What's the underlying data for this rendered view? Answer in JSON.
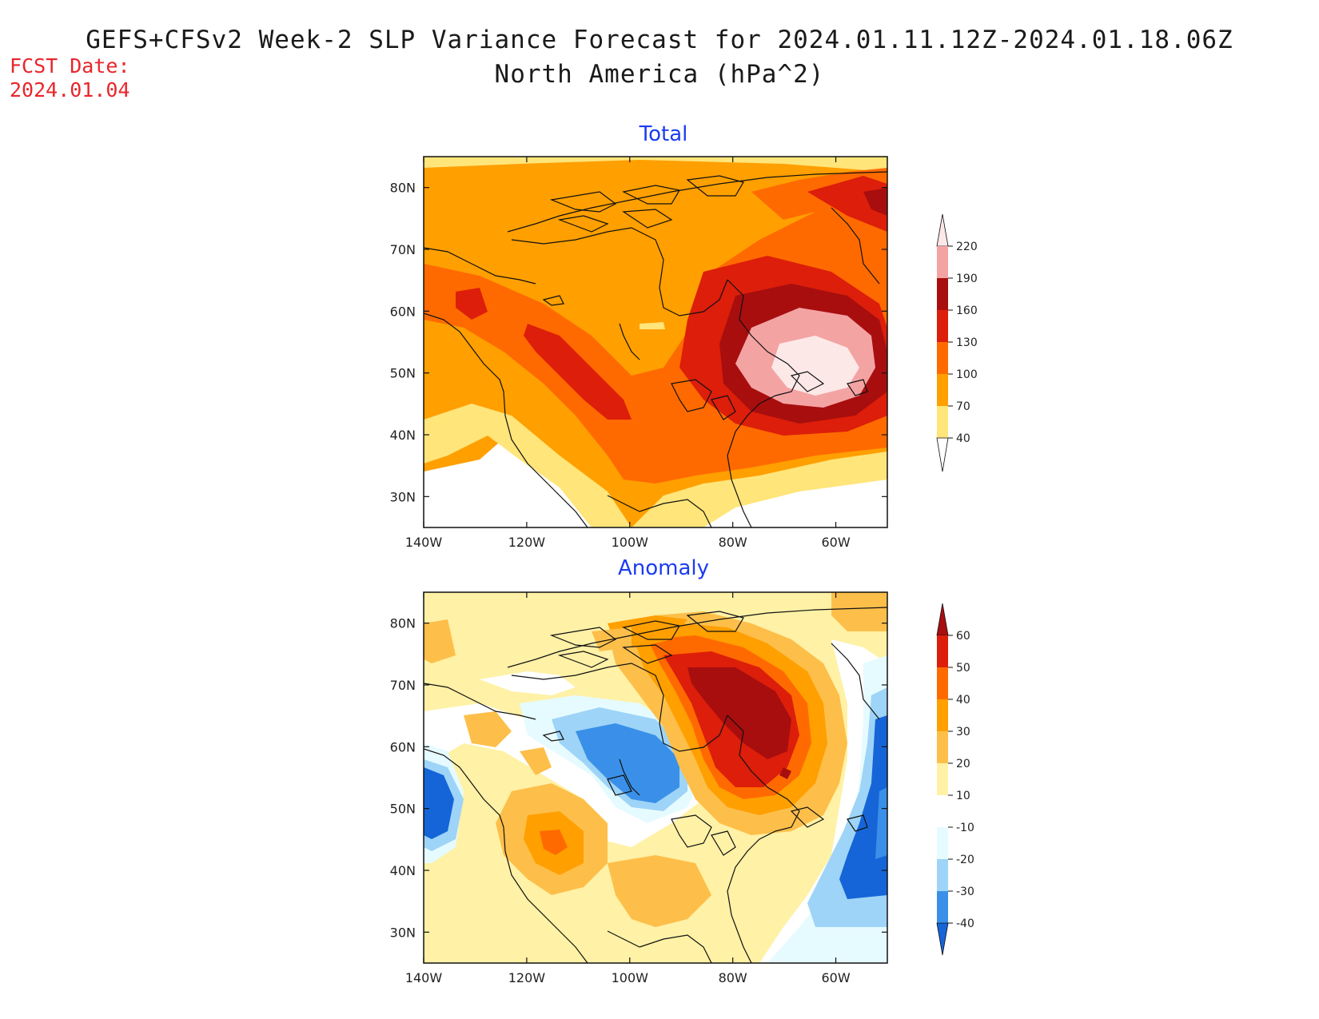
{
  "header": {
    "title_line1": "GEFS+CFSv2 Week-2 SLP Variance Forecast for 2024.01.11.12Z-2024.01.18.06Z",
    "title_line2": "North America (hPa^2)",
    "fcst_label": "FCST Date:",
    "fcst_value": "2024.01.04"
  },
  "axes": {
    "lat_labels": [
      "80N",
      "70N",
      "60N",
      "50N",
      "40N",
      "30N"
    ],
    "lon_labels": [
      "140W",
      "120W",
      "100W",
      "80W",
      "60W"
    ],
    "lat_values": [
      80,
      70,
      60,
      50,
      40,
      30
    ],
    "lon_values": [
      -140,
      -120,
      -100,
      -80,
      -60
    ],
    "lon_range": [
      -140,
      -50
    ],
    "lat_range": [
      25,
      85
    ]
  },
  "panels": [
    {
      "name": "total",
      "title": "Total",
      "colorbar": {
        "levels": [
          "220",
          "190",
          "160",
          "130",
          "100",
          "70",
          "40"
        ],
        "colors": [
          "#fde8e8",
          "#f4a3a3",
          "#a80e0e",
          "#dc1e0a",
          "#ff6a00",
          "#ff9f00",
          "#ffe57a"
        ]
      }
    },
    {
      "name": "anomaly",
      "title": "Anomaly",
      "colorbar": {
        "levels": [
          "60",
          "50",
          "40",
          "30",
          "20",
          "10",
          "-10",
          "-20",
          "-30",
          "-40"
        ],
        "colors": [
          "#a80e0e",
          "#dc1e0a",
          "#ff6a00",
          "#ff9f00",
          "#fdbf4a",
          "#fff1a6",
          "#ffffff",
          "#e6fbff",
          "#9ed4f7",
          "#3a90e8",
          "#1565d8"
        ]
      }
    }
  ]
}
